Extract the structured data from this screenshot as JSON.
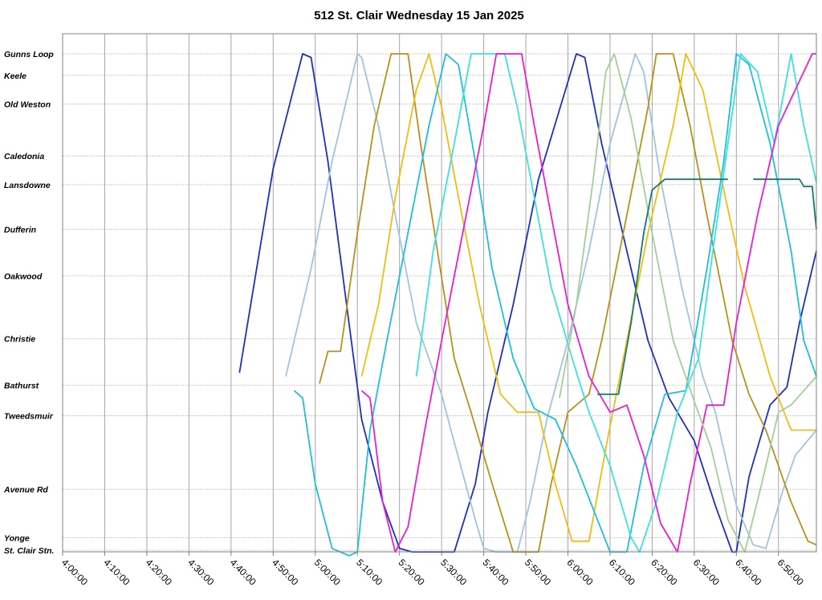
{
  "chart_data": {
    "type": "line",
    "title": "512 St. Clair Wednesday 15 Jan 2025",
    "xlabel": "",
    "ylabel": "",
    "x_range": [
      "4:00:00",
      "6:59:00"
    ],
    "x_ticks": [
      "4:00:00",
      "4:10:00",
      "4:20:00",
      "4:30:00",
      "4:40:00",
      "4:50:00",
      "5:00:00",
      "5:10:00",
      "5:20:00",
      "5:30:00",
      "5:40:00",
      "5:50:00",
      "6:00:00",
      "6:10:00",
      "6:20:00",
      "6:30:00",
      "6:40:00",
      "6:50:00"
    ],
    "y_stops": [
      {
        "label": "Gunns Loop",
        "pos": 0.0
      },
      {
        "label": "Keele",
        "pos": 0.6
      },
      {
        "label": "Old Weston",
        "pos": 1.4
      },
      {
        "label": "Caledonia",
        "pos": 2.85
      },
      {
        "label": "Lansdowne",
        "pos": 3.65
      },
      {
        "label": "Dufferin",
        "pos": 4.9
      },
      {
        "label": "Oakwood",
        "pos": 6.2
      },
      {
        "label": "Christie",
        "pos": 7.95
      },
      {
        "label": "Bathurst",
        "pos": 9.25
      },
      {
        "label": "Tweedsmuir",
        "pos": 10.1
      },
      {
        "label": "Avenue Rd",
        "pos": 12.15
      },
      {
        "label": "Yonge",
        "pos": 13.5
      },
      {
        "label": "St. Clair Stn.",
        "pos": 13.85
      }
    ],
    "grid": true,
    "series": [
      {
        "color": "#1f2fbf",
        "points": [
          [
            "4:42",
            8.9
          ],
          [
            "4:50",
            3.2
          ],
          [
            "4:57",
            0.0
          ],
          [
            "4:59",
            0.1
          ],
          [
            "5:03",
            3.0
          ],
          [
            "5:08",
            7.5
          ],
          [
            "5:11",
            10.2
          ],
          [
            "5:16",
            12.5
          ],
          [
            "5:20",
            13.8
          ],
          [
            "5:23",
            13.9
          ],
          [
            "5:33",
            13.9
          ],
          [
            "5:38",
            12.0
          ],
          [
            "5:41",
            10.0
          ],
          [
            "5:47",
            7.0
          ],
          [
            "5:53",
            3.5
          ],
          [
            "6:02",
            0.0
          ],
          [
            "6:04",
            0.1
          ],
          [
            "6:08",
            2.5
          ],
          [
            "6:14",
            5.5
          ],
          [
            "6:19",
            8.0
          ],
          [
            "6:24",
            9.6
          ],
          [
            "6:30",
            10.8
          ],
          [
            "6:35",
            12.6
          ],
          [
            "6:39",
            13.9
          ],
          [
            "6:40",
            13.9
          ],
          [
            "6:43",
            11.8
          ],
          [
            "6:48",
            9.8
          ],
          [
            "6:52",
            9.3
          ],
          [
            "6:55",
            7.5
          ],
          [
            "6:59",
            5.5
          ]
        ]
      },
      {
        "color": "#9fc4de",
        "points": [
          [
            "4:53",
            9.0
          ],
          [
            "4:59",
            6.0
          ],
          [
            "5:04",
            3.0
          ],
          [
            "5:10",
            0.0
          ],
          [
            "5:11",
            0.1
          ],
          [
            "5:15",
            2.0
          ],
          [
            "5:19",
            4.5
          ],
          [
            "5:24",
            7.5
          ],
          [
            "5:30",
            9.5
          ],
          [
            "5:32",
            10.4
          ],
          [
            "5:38",
            13.0
          ],
          [
            "5:40",
            13.8
          ],
          [
            "5:43",
            13.9
          ],
          [
            "5:48",
            13.9
          ],
          [
            "5:51",
            12.5
          ],
          [
            "5:55",
            10.2
          ],
          [
            "6:00",
            8.0
          ],
          [
            "6:05",
            5.5
          ],
          [
            "6:10",
            2.5
          ],
          [
            "6:16",
            0.0
          ],
          [
            "6:18",
            0.5
          ],
          [
            "6:22",
            3.5
          ],
          [
            "6:27",
            6.5
          ],
          [
            "6:32",
            9.0
          ],
          [
            "6:35",
            10.0
          ],
          [
            "6:40",
            12.6
          ],
          [
            "6:44",
            13.7
          ],
          [
            "6:47",
            13.8
          ],
          [
            "6:51",
            12.2
          ],
          [
            "6:54",
            11.2
          ],
          [
            "6:59",
            10.5
          ]
        ]
      },
      {
        "color": "#b8901c",
        "points": [
          [
            "5:01",
            9.2
          ],
          [
            "5:03",
            8.3
          ],
          [
            "5:06",
            8.3
          ],
          [
            "5:10",
            5.0
          ],
          [
            "5:14",
            2.0
          ],
          [
            "5:18",
            0.0
          ],
          [
            "5:22",
            0.0
          ],
          [
            "5:25",
            2.5
          ],
          [
            "5:29",
            5.5
          ],
          [
            "5:33",
            8.5
          ],
          [
            "5:37",
            10.0
          ],
          [
            "5:42",
            12.0
          ],
          [
            "5:47",
            13.9
          ],
          [
            "5:53",
            13.9
          ],
          [
            "5:56",
            12.0
          ],
          [
            "6:00",
            10.0
          ],
          [
            "6:05",
            9.5
          ],
          [
            "6:08",
            8.0
          ],
          [
            "6:14",
            4.5
          ],
          [
            "6:19",
            1.5
          ],
          [
            "6:21",
            0.0
          ],
          [
            "6:25",
            0.0
          ],
          [
            "6:29",
            2.0
          ],
          [
            "6:33",
            4.5
          ],
          [
            "6:39",
            8.0
          ],
          [
            "6:43",
            9.5
          ],
          [
            "6:47",
            10.5
          ],
          [
            "6:53",
            12.5
          ],
          [
            "6:57",
            13.6
          ],
          [
            "6:59",
            13.7
          ]
        ]
      },
      {
        "color": "#f2bc12",
        "points": [
          [
            "5:11",
            9.0
          ],
          [
            "5:15",
            7.0
          ],
          [
            "5:19",
            4.0
          ],
          [
            "5:24",
            1.0
          ],
          [
            "5:27",
            0.0
          ],
          [
            "5:30",
            1.5
          ],
          [
            "5:34",
            4.0
          ],
          [
            "5:39",
            7.0
          ],
          [
            "5:44",
            9.5
          ],
          [
            "5:48",
            10.0
          ],
          [
            "5:53",
            10.0
          ],
          [
            "5:57",
            12.0
          ],
          [
            "6:01",
            13.6
          ],
          [
            "6:05",
            13.6
          ],
          [
            "6:09",
            11.0
          ],
          [
            "6:14",
            8.0
          ],
          [
            "6:19",
            5.0
          ],
          [
            "6:25",
            2.0
          ],
          [
            "6:28",
            0.0
          ],
          [
            "6:32",
            1.0
          ],
          [
            "6:37",
            3.8
          ],
          [
            "6:42",
            6.5
          ],
          [
            "6:48",
            9.0
          ],
          [
            "6:53",
            10.5
          ],
          [
            "6:59",
            10.5
          ]
        ]
      },
      {
        "color": "#1fbfdc",
        "points": [
          [
            "4:55",
            9.4
          ],
          [
            "4:57",
            9.6
          ],
          [
            "5:00",
            12.0
          ],
          [
            "5:04",
            13.8
          ],
          [
            "5:08",
            14.0
          ],
          [
            "5:10",
            13.9
          ],
          [
            "5:13",
            10.5
          ],
          [
            "5:17",
            8.0
          ],
          [
            "5:22",
            5.0
          ],
          [
            "5:27",
            2.0
          ],
          [
            "5:31",
            0.0
          ],
          [
            "5:34",
            0.3
          ],
          [
            "5:38",
            3.0
          ],
          [
            "5:42",
            6.0
          ],
          [
            "5:47",
            8.5
          ],
          [
            "5:52",
            9.9
          ],
          [
            "5:57",
            10.2
          ],
          [
            "6:02",
            11.5
          ],
          [
            "6:07",
            13.0
          ],
          [
            "6:10",
            13.9
          ],
          [
            "6:14",
            13.9
          ],
          [
            "6:18",
            11.5
          ],
          [
            "6:23",
            9.5
          ],
          [
            "6:28",
            9.4
          ],
          [
            "6:33",
            6.0
          ],
          [
            "6:37",
            3.0
          ],
          [
            "6:40",
            0.0
          ],
          [
            "6:43",
            0.3
          ],
          [
            "6:48",
            2.5
          ],
          [
            "6:53",
            5.5
          ],
          [
            "6:56",
            8.0
          ],
          [
            "6:59",
            9.0
          ]
        ]
      },
      {
        "color": "#3fe0e0",
        "points": [
          [
            "5:24",
            9.0
          ],
          [
            "5:28",
            5.5
          ],
          [
            "5:33",
            2.5
          ],
          [
            "5:37",
            0.0
          ],
          [
            "5:45",
            0.0
          ],
          [
            "5:48",
            1.5
          ],
          [
            "5:52",
            4.0
          ],
          [
            "5:56",
            6.5
          ],
          [
            "6:01",
            8.5
          ],
          [
            "6:05",
            10.0
          ],
          [
            "6:10",
            11.5
          ],
          [
            "6:15",
            13.5
          ],
          [
            "6:17",
            13.9
          ],
          [
            "6:21",
            12.5
          ],
          [
            "6:26",
            10.0
          ],
          [
            "6:31",
            8.5
          ],
          [
            "6:35",
            5.0
          ],
          [
            "6:38",
            2.5
          ],
          [
            "6:41",
            0.0
          ],
          [
            "6:45",
            0.5
          ],
          [
            "6:49",
            2.5
          ],
          [
            "6:53",
            0.0
          ],
          [
            "6:56",
            2.0
          ],
          [
            "6:59",
            3.6
          ]
        ]
      },
      {
        "color": "#e81ed6",
        "points": [
          [
            "5:11",
            9.4
          ],
          [
            "5:13",
            9.6
          ],
          [
            "5:16",
            12.5
          ],
          [
            "5:19",
            13.9
          ],
          [
            "5:22",
            13.2
          ],
          [
            "5:26",
            10.5
          ],
          [
            "5:30",
            8.0
          ],
          [
            "5:35",
            5.0
          ],
          [
            "5:40",
            2.0
          ],
          [
            "5:43",
            0.0
          ],
          [
            "5:49",
            0.0
          ],
          [
            "5:52",
            2.0
          ],
          [
            "5:56",
            4.5
          ],
          [
            "6:00",
            7.0
          ],
          [
            "6:05",
            9.0
          ],
          [
            "6:10",
            10.0
          ],
          [
            "6:14",
            9.8
          ],
          [
            "6:18",
            11.2
          ],
          [
            "6:22",
            13.1
          ],
          [
            "6:26",
            13.9
          ],
          [
            "6:29",
            12.0
          ],
          [
            "6:33",
            9.8
          ],
          [
            "6:37",
            9.8
          ],
          [
            "6:40",
            7.5
          ],
          [
            "6:45",
            4.5
          ],
          [
            "6:50",
            2.0
          ],
          [
            "6:56",
            0.5
          ],
          [
            "6:58",
            0.0
          ],
          [
            "6:59",
            0.0
          ]
        ]
      },
      {
        "color": "#a3cf96",
        "points": [
          [
            "5:58",
            9.6
          ],
          [
            "6:02",
            7.0
          ],
          [
            "6:06",
            3.5
          ],
          [
            "6:09",
            0.5
          ],
          [
            "6:11",
            0.0
          ],
          [
            "6:15",
            1.8
          ],
          [
            "6:20",
            5.0
          ],
          [
            "6:25",
            8.0
          ],
          [
            "6:30",
            9.7
          ],
          [
            "6:34",
            11.0
          ],
          [
            "6:38",
            13.0
          ],
          [
            "6:42",
            13.9
          ],
          [
            "6:46",
            12.0
          ],
          [
            "6:50",
            10.0
          ],
          [
            "6:53",
            9.8
          ],
          [
            "6:59",
            9.0
          ]
        ]
      },
      {
        "color": "#157a70",
        "points": [
          [
            "6:07",
            9.5
          ],
          [
            "6:12",
            9.5
          ],
          [
            "6:15",
            7.5
          ],
          [
            "6:18",
            5.0
          ],
          [
            "6:20",
            3.8
          ],
          [
            "6:23",
            3.5
          ],
          [
            "6:38",
            3.5
          ]
        ]
      },
      {
        "color": "#157a70",
        "points": [
          [
            "6:44",
            3.5
          ],
          [
            "6:55",
            3.5
          ],
          [
            "6:56",
            3.7
          ],
          [
            "6:58",
            3.7
          ],
          [
            "6:59",
            4.9
          ]
        ]
      }
    ]
  }
}
